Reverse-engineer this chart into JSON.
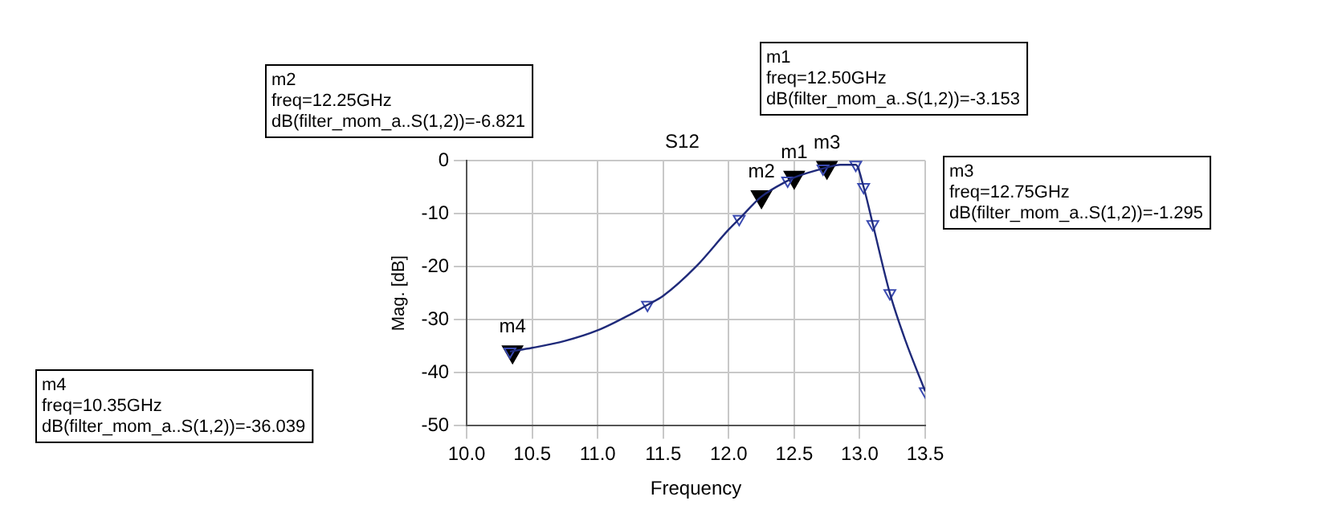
{
  "chart_data": {
    "type": "line",
    "title": "S12",
    "xlabel": "Frequency",
    "ylabel": "Mag. [dB]",
    "series": [
      {
        "color": "#1f2a7a",
        "marker": "none",
        "x": [
          10.33,
          10.5,
          10.75,
          11.0,
          11.25,
          11.38,
          11.5,
          11.75,
          12.0,
          12.08,
          12.25,
          12.45,
          12.5,
          12.72,
          12.75,
          12.85,
          12.97,
          13.03,
          13.1,
          13.23,
          13.35,
          13.5
        ],
        "values": [
          -36.0,
          -35.3,
          -34.0,
          -32.0,
          -29.0,
          -27.2,
          -25.5,
          -20.0,
          -13.0,
          -11.0,
          -6.8,
          -3.8,
          -3.2,
          -1.5,
          -1.3,
          -0.8,
          -0.8,
          -5.0,
          -12.0,
          -25.0,
          -34.0,
          -43.5
        ]
      },
      {
        "type": "scatter",
        "color": "#3a4ab0",
        "marker": "triangle",
        "x": [
          10.33,
          11.38,
          12.08,
          12.45,
          12.72,
          12.97,
          13.03,
          13.1,
          13.23,
          13.5
        ],
        "values": [
          -36.0,
          -27.2,
          -11.0,
          -3.8,
          -1.5,
          -0.8,
          -5.0,
          -12.0,
          -25.0,
          -43.5
        ]
      },
      {
        "type": "scatter",
        "color": "#000000",
        "marker": "triangle",
        "x": [
          12.5,
          12.25,
          12.75,
          10.35
        ],
        "values": [
          -3.153,
          -6.821,
          -1.295,
          -36.039
        ]
      }
    ],
    "xlim": [
      10.0,
      13.5
    ],
    "xticks": [
      {
        "value": 10,
        "label": "10.0"
      },
      10.5,
      {
        "value": 11,
        "label": "11.0"
      },
      11.5,
      {
        "value": 12,
        "label": "12.0"
      },
      12.5,
      {
        "value": 13,
        "label": "13.0"
      },
      13.5
    ],
    "ylim": [
      -50,
      0
    ],
    "yticks": [
      -50,
      -40,
      -30,
      -20,
      -10,
      0
    ],
    "grid": true,
    "annotations": [
      {
        "text": "m1",
        "x": 12.5,
        "y": -3.153
      },
      {
        "text": "m2",
        "x": 12.25,
        "y": -6.821
      },
      {
        "text": "m3",
        "x": 12.75,
        "y": -1.295
      },
      {
        "text": "m4",
        "x": 10.35,
        "y": -36.039
      },
      "m1\nfreq=12.50GHz\ndB(filter_mom_a..S(1,2))=-3.153",
      "m2\nfreq=12.25GHz\ndB(filter_mom_a..S(1,2))=-6.821",
      "m3\nfreq=12.75GHz\ndB(filter_mom_a..S(1,2))=-1.295",
      "m4\nfreq=10.35GHz\ndB(filter_mom_a..S(1,2))=-36.039"
    ]
  }
}
